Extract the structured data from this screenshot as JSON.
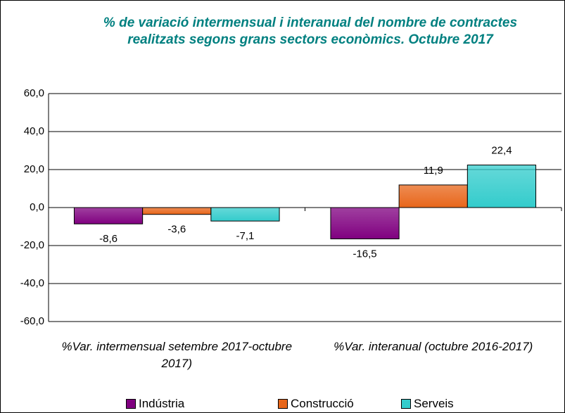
{
  "chart_data": {
    "type": "bar",
    "title": "% de variació intermensual i interanual del nombre de contractes realitzats segons grans sectors econòmics. Octubre 2017",
    "categories": [
      "%Var. intermensual setembre 2017-octubre 2017)",
      "%Var. interanual (octubre 2016-2017)"
    ],
    "series": [
      {
        "name": "Indústria",
        "color": "#800080",
        "values": [
          -8.6,
          -16.5
        ],
        "value_labels": [
          "-8,6",
          "-16,5"
        ]
      },
      {
        "name": "Construcció",
        "color": "#e8661a",
        "values": [
          -3.6,
          11.9
        ],
        "value_labels": [
          "-3,6",
          "11,9"
        ]
      },
      {
        "name": "Serveis",
        "color": "#33cccc",
        "values": [
          -7.1,
          22.4
        ],
        "value_labels": [
          "-7,1",
          "22,4"
        ]
      }
    ],
    "ylim": [
      -60,
      60
    ],
    "yticks": [
      {
        "value": -60,
        "label": "-60,0"
      },
      {
        "value": -40,
        "label": "-40,0"
      },
      {
        "value": -20,
        "label": "-20,0"
      },
      {
        "value": 0,
        "label": "0,0"
      },
      {
        "value": 20,
        "label": "20,0"
      },
      {
        "value": 40,
        "label": "40,0"
      },
      {
        "value": 60,
        "label": "60,0"
      }
    ],
    "grid": true,
    "legend": "bottom"
  }
}
